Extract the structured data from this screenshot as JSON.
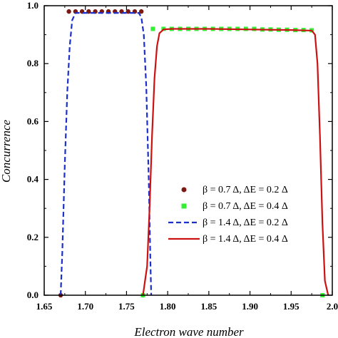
{
  "chart_data": {
    "type": "line",
    "xlabel": "Electron wave number",
    "ylabel": "Concurrence",
    "xlim": [
      1.65,
      2.0
    ],
    "ylim": [
      0,
      1.0
    ],
    "x_ticks": [
      "1.65",
      "1.70",
      "1.75",
      "1.80",
      "1.85",
      "1.90",
      "1.95",
      "2.0"
    ],
    "y_ticks": [
      "0.0",
      "0.2",
      "0.4",
      "0.6",
      "0.8",
      "1.0"
    ],
    "legend_position": "bottom-right",
    "series": [
      {
        "name": "β = 0.7 Δ, ΔE = 0.2 Δ",
        "style": "dots",
        "color": "#7a1a12",
        "points": [
          [
            1.67,
            0.0
          ],
          [
            1.68,
            0.98
          ],
          [
            1.688,
            0.98
          ],
          [
            1.696,
            0.98
          ],
          [
            1.704,
            0.98
          ],
          [
            1.712,
            0.98
          ],
          [
            1.72,
            0.98
          ],
          [
            1.728,
            0.98
          ],
          [
            1.736,
            0.98
          ],
          [
            1.744,
            0.98
          ],
          [
            1.752,
            0.98
          ],
          [
            1.76,
            0.98
          ],
          [
            1.768,
            0.98
          ],
          [
            1.77,
            0.0
          ]
        ]
      },
      {
        "name": "β = 0.7 Δ, ΔE = 0.4 Δ",
        "style": "squares",
        "color": "#33ee33",
        "points": [
          [
            1.77,
            0.0
          ],
          [
            1.782,
            0.92
          ],
          [
            1.795,
            0.92
          ],
          [
            1.805,
            0.92
          ],
          [
            1.815,
            0.92
          ],
          [
            1.825,
            0.92
          ],
          [
            1.835,
            0.92
          ],
          [
            1.845,
            0.92
          ],
          [
            1.855,
            0.92
          ],
          [
            1.865,
            0.92
          ],
          [
            1.875,
            0.92
          ],
          [
            1.885,
            0.92
          ],
          [
            1.895,
            0.92
          ],
          [
            1.905,
            0.92
          ],
          [
            1.915,
            0.918
          ],
          [
            1.925,
            0.918
          ],
          [
            1.935,
            0.917
          ],
          [
            1.945,
            0.917
          ],
          [
            1.955,
            0.916
          ],
          [
            1.965,
            0.916
          ],
          [
            1.975,
            0.915
          ],
          [
            1.988,
            0.0
          ]
        ]
      },
      {
        "name": "β = 1.4 Δ, ΔE = 0.2 Δ",
        "style": "dashed",
        "color": "#1a2fcc",
        "points": [
          [
            1.67,
            0.0
          ],
          [
            1.672,
            0.15
          ],
          [
            1.675,
            0.45
          ],
          [
            1.678,
            0.7
          ],
          [
            1.681,
            0.86
          ],
          [
            1.684,
            0.95
          ],
          [
            1.688,
            0.975
          ],
          [
            1.695,
            0.975
          ],
          [
            1.71,
            0.975
          ],
          [
            1.73,
            0.975
          ],
          [
            1.75,
            0.975
          ],
          [
            1.765,
            0.975
          ],
          [
            1.768,
            0.96
          ],
          [
            1.771,
            0.9
          ],
          [
            1.774,
            0.72
          ],
          [
            1.777,
            0.4
          ],
          [
            1.779,
            0.12
          ],
          [
            1.78,
            0.0
          ]
        ]
      },
      {
        "name": "β = 1.4 Δ, ΔE = 0.4 Δ",
        "style": "solid",
        "color": "#cc1111",
        "points": [
          [
            1.77,
            0.0
          ],
          [
            1.775,
            0.1
          ],
          [
            1.778,
            0.3
          ],
          [
            1.781,
            0.55
          ],
          [
            1.784,
            0.75
          ],
          [
            1.787,
            0.86
          ],
          [
            1.79,
            0.905
          ],
          [
            1.795,
            0.918
          ],
          [
            1.805,
            0.92
          ],
          [
            1.85,
            0.92
          ],
          [
            1.9,
            0.918
          ],
          [
            1.95,
            0.916
          ],
          [
            1.975,
            0.914
          ],
          [
            1.979,
            0.9
          ],
          [
            1.982,
            0.8
          ],
          [
            1.985,
            0.55
          ],
          [
            1.988,
            0.25
          ],
          [
            1.991,
            0.05
          ],
          [
            1.995,
            0.0
          ]
        ]
      }
    ]
  }
}
